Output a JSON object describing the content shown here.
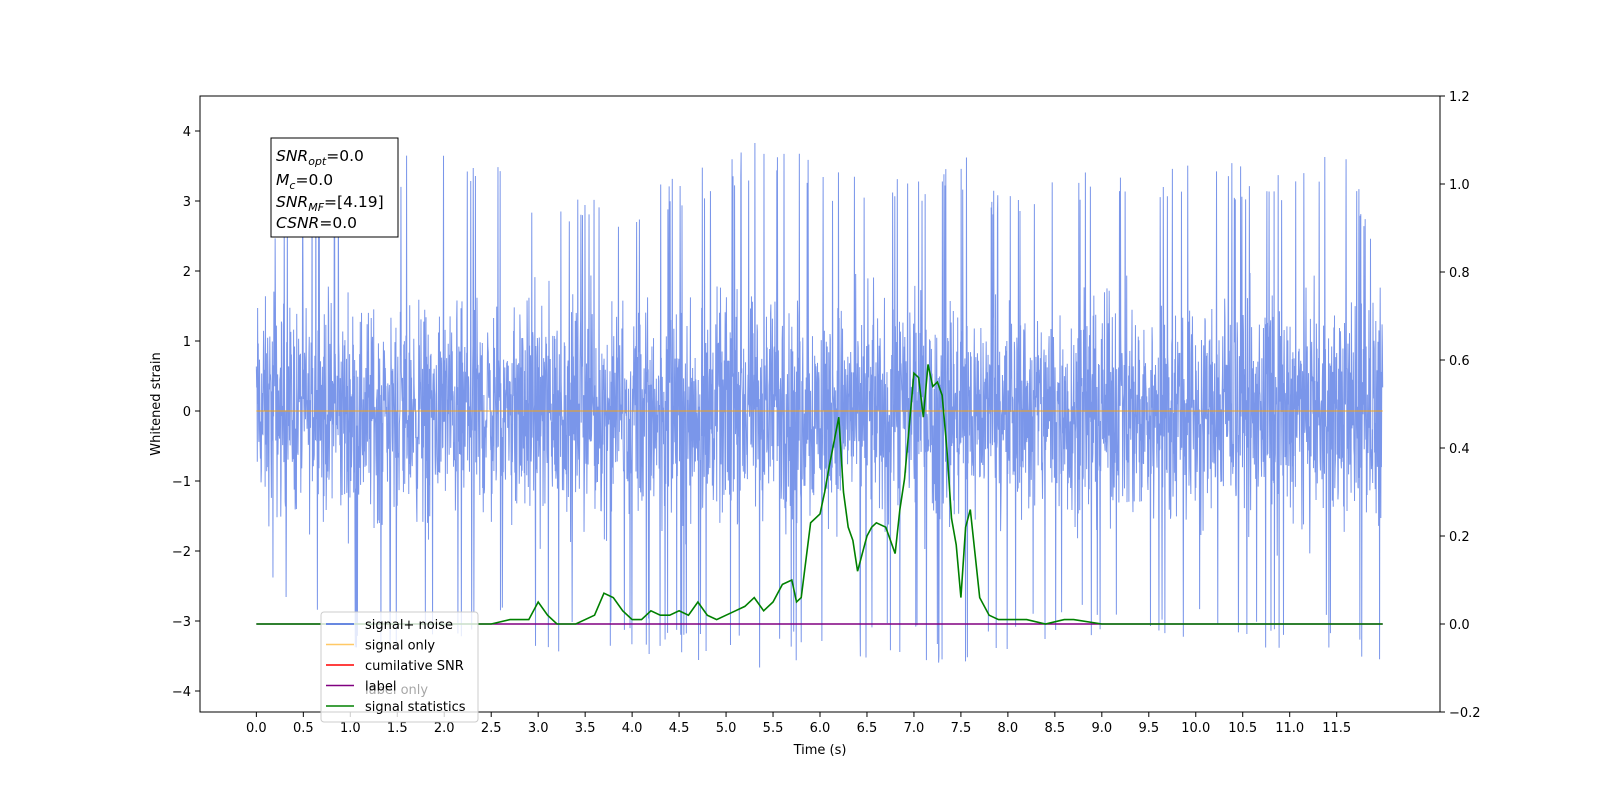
{
  "chart_data": {
    "type": "line",
    "xlabel": "Time (s)",
    "ylabel": "Whitened strain",
    "xlim": [
      -0.6,
      12.6
    ],
    "ylim": [
      -4.3,
      4.5
    ],
    "y2lim": [
      -0.2,
      1.2
    ],
    "grid": false,
    "legend_position": "lower-left",
    "x_ticks": [
      "0.0",
      "0.5",
      "1.0",
      "1.5",
      "2.0",
      "2.5",
      "3.0",
      "3.5",
      "4.0",
      "4.5",
      "5.0",
      "5.5",
      "6.0",
      "6.5",
      "7.0",
      "7.5",
      "8.0",
      "8.5",
      "9.0",
      "9.5",
      "10.0",
      "10.5",
      "11.0",
      "11.5"
    ],
    "y_ticks": [
      "−4",
      "−3",
      "−2",
      "−1",
      "0",
      "1",
      "2",
      "3",
      "4"
    ],
    "y2_ticks": [
      "−0.2",
      "0.0",
      "0.2",
      "0.4",
      "0.6",
      "0.8",
      "1.0",
      "1.2"
    ],
    "stats_box": {
      "snr_opt": "0.0",
      "mc": "0.0",
      "snr_mf": "[4.19]",
      "csnr": "0.0"
    },
    "legend": [
      {
        "label": "signal+ noise",
        "color": "#4169e1"
      },
      {
        "label": "signal only",
        "color": "#ffa500"
      },
      {
        "label": "cumilative SNR",
        "color": "#ff0000"
      },
      {
        "label": "label",
        "color": "#800080"
      },
      {
        "label": "signal statistics",
        "color": "#008000"
      }
    ],
    "hidden_label_text": "label only",
    "series": [
      {
        "name": "signal+ noise",
        "color": "#4169e1",
        "description": "whitened strain noise, roughly within ±2.5 with spikes up to ±4.1",
        "envelope": {
          "x": [
            0.0,
            0.5,
            1.0,
            1.5,
            2.0,
            2.5,
            3.0,
            3.5,
            4.0,
            4.5,
            5.0,
            5.5,
            6.0,
            6.5,
            7.0,
            7.5,
            8.0,
            8.5,
            9.0,
            9.5,
            10.0,
            10.5,
            11.0,
            11.5,
            11.99
          ],
          "max": [
            1.6,
            4.1,
            3.4,
            3.7,
            3.8,
            3.6,
            3.1,
            3.2,
            3.0,
            3.4,
            3.6,
            4.0,
            3.6,
            3.3,
            3.4,
            3.7,
            3.1,
            3.4,
            3.6,
            3.5,
            3.7,
            3.5,
            3.4,
            4.1,
            2.2
          ],
          "min": [
            -2.4,
            -3.0,
            -3.5,
            -3.4,
            -3.3,
            -3.2,
            -3.6,
            -3.4,
            -3.4,
            -3.6,
            -3.5,
            -3.8,
            -3.4,
            -3.6,
            -3.5,
            -3.8,
            -3.4,
            -3.3,
            -3.2,
            -3.3,
            -3.3,
            -3.3,
            -3.5,
            -3.4,
            -3.8
          ]
        }
      },
      {
        "name": "signal only",
        "color": "#ffa500",
        "x": [
          0.0,
          11.99
        ],
        "y": [
          0.0,
          0.0
        ]
      },
      {
        "name": "label",
        "color": "#800080",
        "axis": "right",
        "x": [
          0.0,
          11.99
        ],
        "y": [
          0.0,
          0.0
        ]
      },
      {
        "name": "signal statistics",
        "color": "#008000",
        "axis": "right",
        "x": [
          0.0,
          2.5,
          2.7,
          2.9,
          3.0,
          3.1,
          3.2,
          3.4,
          3.6,
          3.7,
          3.8,
          3.9,
          4.0,
          4.1,
          4.2,
          4.3,
          4.4,
          4.5,
          4.6,
          4.7,
          4.8,
          4.9,
          5.0,
          5.1,
          5.2,
          5.3,
          5.4,
          5.5,
          5.6,
          5.7,
          5.75,
          5.8,
          5.9,
          6.0,
          6.05,
          6.1,
          6.2,
          6.25,
          6.3,
          6.35,
          6.4,
          6.5,
          6.55,
          6.6,
          6.7,
          6.8,
          6.85,
          6.9,
          7.0,
          7.05,
          7.1,
          7.15,
          7.2,
          7.25,
          7.3,
          7.35,
          7.4,
          7.45,
          7.5,
          7.55,
          7.6,
          7.65,
          7.7,
          7.8,
          7.9,
          8.0,
          8.1,
          8.2,
          8.4,
          8.6,
          8.7,
          9.0,
          11.99
        ],
        "y": [
          0.0,
          0.0,
          0.01,
          0.01,
          0.05,
          0.02,
          0.0,
          0.0,
          0.02,
          0.07,
          0.06,
          0.03,
          0.01,
          0.01,
          0.03,
          0.02,
          0.02,
          0.03,
          0.02,
          0.05,
          0.02,
          0.01,
          0.02,
          0.03,
          0.04,
          0.06,
          0.03,
          0.05,
          0.09,
          0.1,
          0.05,
          0.06,
          0.23,
          0.25,
          0.3,
          0.36,
          0.47,
          0.3,
          0.22,
          0.19,
          0.12,
          0.2,
          0.22,
          0.23,
          0.22,
          0.16,
          0.26,
          0.33,
          0.57,
          0.56,
          0.47,
          0.59,
          0.54,
          0.55,
          0.52,
          0.4,
          0.24,
          0.18,
          0.06,
          0.22,
          0.26,
          0.16,
          0.06,
          0.02,
          0.01,
          0.01,
          0.01,
          0.01,
          0.0,
          0.01,
          0.01,
          0.0,
          0.0
        ]
      }
    ]
  }
}
